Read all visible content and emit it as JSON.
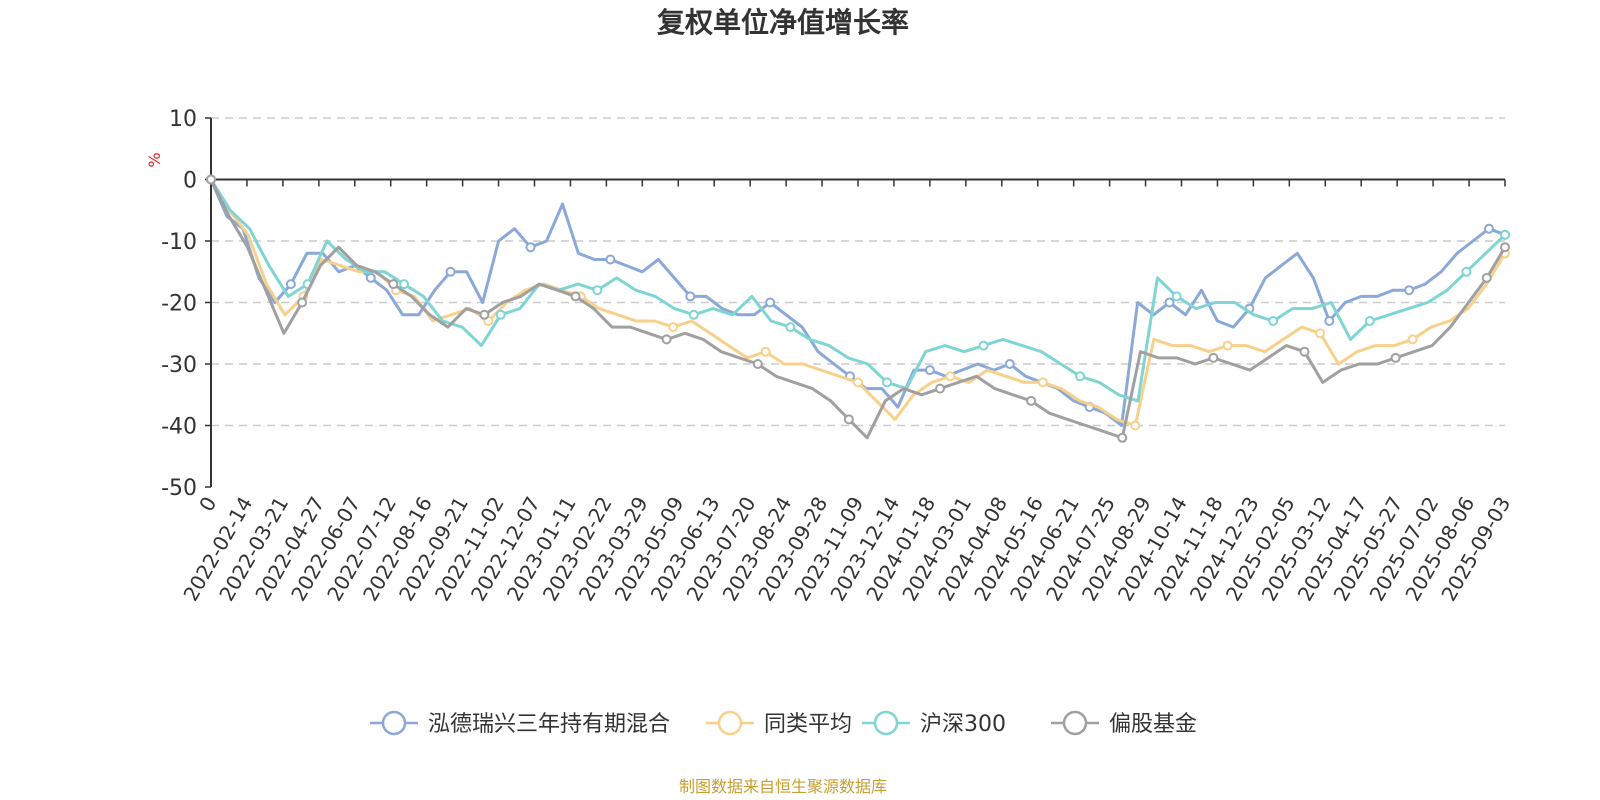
{
  "chart_data": {
    "type": "line",
    "title": "复权单位净值增长率",
    "ylabel": "%",
    "ylim": [
      -50,
      10
    ],
    "yticks": [
      10,
      0,
      -10,
      -20,
      -30,
      -40,
      -50
    ],
    "grid": true,
    "legend_position": "bottom",
    "source_note": "制图数据来自恒生聚源数据库",
    "x_tick_labels": [
      "0",
      "2022-02-14",
      "2022-03-21",
      "2022-04-27",
      "2022-06-07",
      "2022-07-12",
      "2022-08-16",
      "2022-09-21",
      "2022-11-02",
      "2022-12-07",
      "2023-01-11",
      "2023-02-22",
      "2023-03-29",
      "2023-05-09",
      "2023-06-13",
      "2023-07-20",
      "2023-08-24",
      "2023-09-28",
      "2023-11-09",
      "2023-12-14",
      "2024-01-18",
      "2024-03-01",
      "2024-04-08",
      "2024-05-16",
      "2024-06-21",
      "2024-07-25",
      "2024-08-29",
      "2024-10-14",
      "2024-11-18",
      "2024-12-23",
      "2025-02-05",
      "2025-03-12",
      "2025-04-17",
      "2025-05-27",
      "2025-07-02",
      "2025-08-06",
      "2025-09-03"
    ],
    "series": [
      {
        "name": "泓德瑞兴三年持有期混合",
        "color": "#8aa8d8",
        "values": [
          0,
          -6,
          -8,
          -16,
          -20,
          -17,
          -12,
          -12,
          -15,
          -14,
          -16,
          -18,
          -22,
          -22,
          -18,
          -15,
          -15,
          -20,
          -10,
          -8,
          -11,
          -10,
          -4,
          -12,
          -13,
          -13,
          -14,
          -15,
          -13,
          -16,
          -19,
          -19,
          -21,
          -22,
          -22,
          -20,
          -22,
          -24,
          -28,
          -30,
          -32,
          -34,
          -34,
          -37,
          -31,
          -31,
          -32,
          -31,
          -30,
          -31,
          -30,
          -32,
          -33,
          -34,
          -36,
          -37,
          -38,
          -40,
          -20,
          -22,
          -20,
          -22,
          -18,
          -23,
          -24,
          -21,
          -16,
          -14,
          -12,
          -16,
          -23,
          -20,
          -19,
          -19,
          -18,
          -18,
          -17,
          -15,
          -12,
          -10,
          -8,
          -9
        ]
      },
      {
        "name": "同类平均",
        "color": "#f8d08a",
        "values": [
          0,
          -5,
          -9,
          -17,
          -22,
          -19,
          -13,
          -14,
          -15,
          -15,
          -18,
          -19,
          -23,
          -22,
          -21,
          -23,
          -20,
          -18,
          -17,
          -18,
          -19,
          -21,
          -22,
          -23,
          -23,
          -24,
          -23,
          -25,
          -27,
          -29,
          -28,
          -30,
          -30,
          -31,
          -32,
          -33,
          -36,
          -39,
          -35,
          -33,
          -32,
          -33,
          -31,
          -32,
          -33,
          -33,
          -34,
          -36,
          -37,
          -39,
          -40,
          -26,
          -27,
          -27,
          -28,
          -27,
          -27,
          -28,
          -26,
          -24,
          -25,
          -30,
          -28,
          -27,
          -27,
          -26,
          -24,
          -23,
          -21,
          -17,
          -12
        ]
      },
      {
        "name": "沪深300",
        "color": "#7fd4d4",
        "values": [
          0,
          -5,
          -8,
          -14,
          -19,
          -17,
          -10,
          -13,
          -15,
          -15,
          -17,
          -19,
          -23,
          -24,
          -27,
          -22,
          -21,
          -17,
          -18,
          -17,
          -18,
          -16,
          -18,
          -19,
          -21,
          -22,
          -21,
          -22,
          -19,
          -23,
          -24,
          -26,
          -27,
          -29,
          -30,
          -33,
          -34,
          -28,
          -27,
          -28,
          -27,
          -26,
          -27,
          -28,
          -30,
          -32,
          -33,
          -35,
          -36,
          -16,
          -19,
          -21,
          -20,
          -20,
          -22,
          -23,
          -21,
          -21,
          -20,
          -26,
          -23,
          -22,
          -21,
          -20,
          -18,
          -15,
          -12,
          -9
        ]
      },
      {
        "name": "偏股基金",
        "color": "#a0a0a0",
        "values": [
          0,
          -6,
          -11,
          -18,
          -25,
          -20,
          -14,
          -11,
          -14,
          -15,
          -17,
          -19,
          -22,
          -24,
          -21,
          -22,
          -20,
          -19,
          -17,
          -18,
          -19,
          -21,
          -24,
          -24,
          -25,
          -26,
          -25,
          -26,
          -28,
          -29,
          -30,
          -32,
          -33,
          -34,
          -36,
          -39,
          -42,
          -36,
          -34,
          -35,
          -34,
          -33,
          -32,
          -34,
          -35,
          -36,
          -38,
          -39,
          -40,
          -41,
          -42,
          -28,
          -29,
          -29,
          -30,
          -29,
          -30,
          -31,
          -29,
          -27,
          -28,
          -33,
          -31,
          -30,
          -30,
          -29,
          -28,
          -27,
          -24,
          -20,
          -16,
          -11
        ]
      }
    ]
  }
}
